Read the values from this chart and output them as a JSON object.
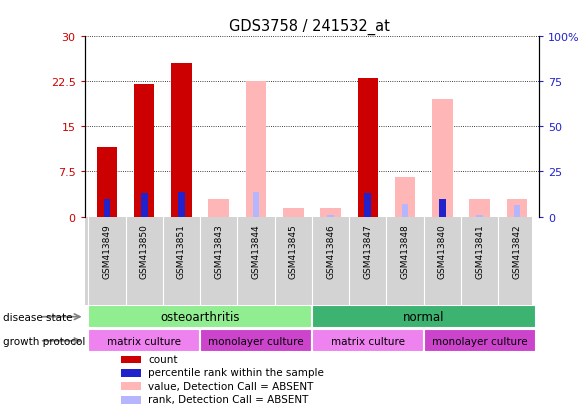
{
  "title": "GDS3758 / 241532_at",
  "samples": [
    "GSM413849",
    "GSM413850",
    "GSM413851",
    "GSM413843",
    "GSM413844",
    "GSM413845",
    "GSM413846",
    "GSM413847",
    "GSM413848",
    "GSM413840",
    "GSM413841",
    "GSM413842"
  ],
  "count_present": [
    11.5,
    22,
    25.5,
    0,
    0,
    0,
    0,
    23,
    0,
    0,
    0,
    0
  ],
  "count_absent": [
    0,
    0,
    0,
    3,
    22.5,
    1.5,
    1.5,
    0,
    6.5,
    19.5,
    3,
    3
  ],
  "percentile_present": [
    10,
    13,
    13.5,
    0,
    0,
    0,
    0,
    13,
    0,
    10,
    0,
    0
  ],
  "percentile_absent": [
    0,
    0,
    0,
    0,
    13.5,
    0,
    1,
    0,
    7,
    0,
    1,
    6.5
  ],
  "ylim_left": [
    0,
    30
  ],
  "ylim_right": [
    0,
    100
  ],
  "yticks_left": [
    0,
    7.5,
    15,
    22.5,
    30
  ],
  "yticks_right": [
    0,
    25,
    50,
    75,
    100
  ],
  "disease_state": [
    {
      "label": "osteoarthritis",
      "start": 0,
      "end": 6,
      "color": "#90ee90"
    },
    {
      "label": "normal",
      "start": 6,
      "end": 12,
      "color": "#3cb371"
    }
  ],
  "growth_protocol": [
    {
      "label": "matrix culture",
      "start": 0,
      "end": 3,
      "color": "#ee82ee"
    },
    {
      "label": "monolayer culture",
      "start": 3,
      "end": 6,
      "color": "#cc44cc"
    },
    {
      "label": "matrix culture",
      "start": 6,
      "end": 9,
      "color": "#ee82ee"
    },
    {
      "label": "monolayer culture",
      "start": 9,
      "end": 12,
      "color": "#cc44cc"
    }
  ],
  "bar_width": 0.55,
  "percentile_bar_width": 0.18,
  "count_color": "#cc0000",
  "percentile_color": "#2222cc",
  "value_absent_color": "#ffb6b6",
  "rank_absent_color": "#b6b6ff",
  "background_color": "#ffffff",
  "tick_label_color_left": "#cc0000",
  "tick_label_color_right": "#2222cc",
  "legend_items": [
    {
      "label": "count",
      "color": "#cc0000"
    },
    {
      "label": "percentile rank within the sample",
      "color": "#2222cc"
    },
    {
      "label": "value, Detection Call = ABSENT",
      "color": "#ffb6b6"
    },
    {
      "label": "rank, Detection Call = ABSENT",
      "color": "#b6b6ff"
    }
  ],
  "xtick_bg_color": "#d3d3d3"
}
